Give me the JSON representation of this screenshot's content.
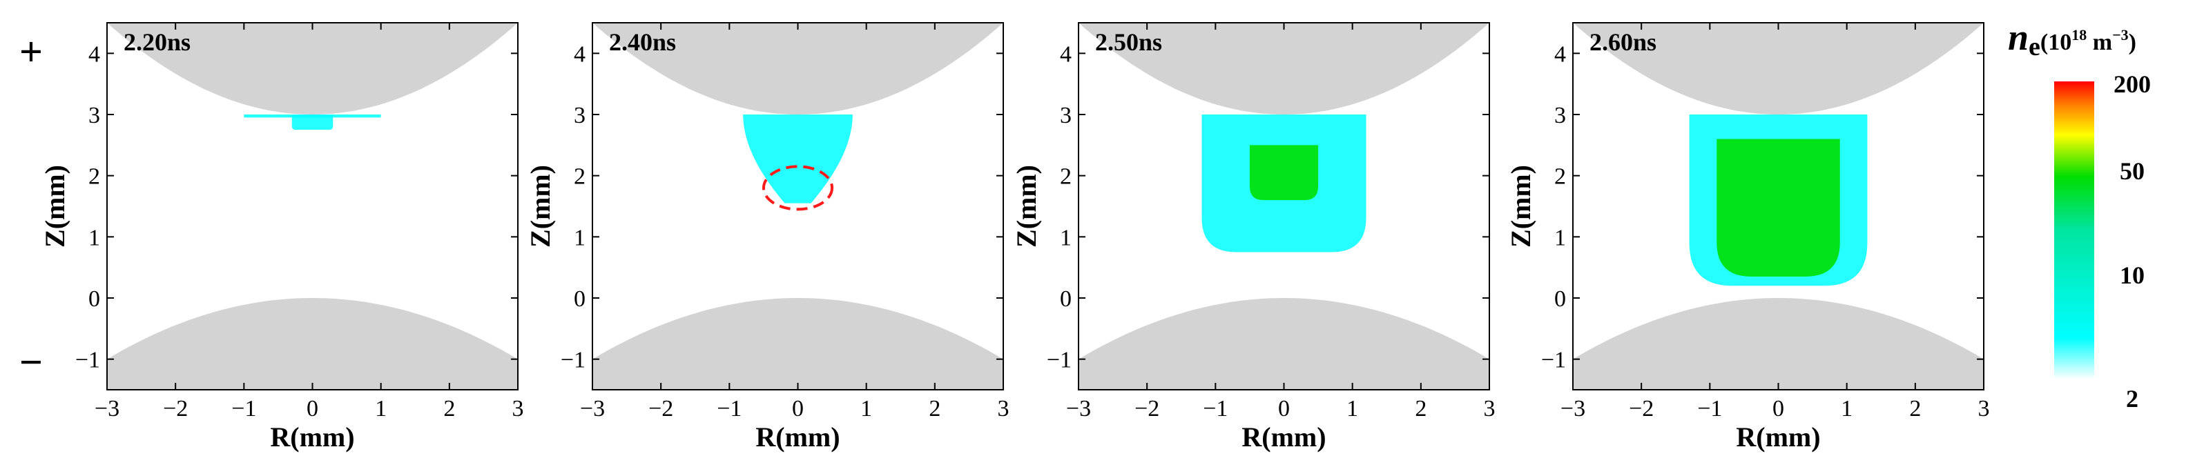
{
  "chart_data": [
    {
      "type": "heatmap",
      "title": "2.20ns",
      "xlabel": "R(mm)",
      "ylabel": "Z(mm)",
      "xlim": [
        -3,
        3
      ],
      "ylim": [
        -1.5,
        4.5
      ],
      "xticks": [
        -3,
        -2,
        -1,
        0,
        1,
        2,
        3
      ],
      "yticks": [
        -1,
        0,
        1,
        2,
        3,
        4
      ],
      "plasma_regions": [
        {
          "name": "thin sheath under upper electrode",
          "r": [
            -1.0,
            1.0
          ],
          "z": [
            2.95,
            3.0
          ],
          "ne": 8
        },
        {
          "name": "small blob below upper electrode",
          "r": [
            -0.3,
            0.3
          ],
          "z": [
            2.75,
            3.0
          ],
          "ne": 5
        }
      ]
    },
    {
      "type": "heatmap",
      "title": "2.40ns",
      "xlabel": "R(mm)",
      "ylabel": "Z(mm)",
      "xlim": [
        -3,
        3
      ],
      "ylim": [
        -1.5,
        4.5
      ],
      "xticks": [
        -3,
        -2,
        -1,
        0,
        1,
        2,
        3
      ],
      "yticks": [
        -1,
        0,
        1,
        2,
        3,
        4
      ],
      "plasma_regions": [
        {
          "name": "conical plasma column",
          "r": [
            -0.8,
            0.8
          ],
          "z": [
            1.55,
            3.0
          ],
          "ne": 7
        }
      ],
      "annotation": {
        "type": "dashed ellipse",
        "color": "#ff1a1a",
        "center_r": 0.0,
        "center_z": 1.8,
        "width_r": 1.0,
        "height_z": 0.7
      }
    },
    {
      "type": "heatmap",
      "title": "2.50ns",
      "xlabel": "R(mm)",
      "ylabel": "Z(mm)",
      "xlim": [
        -3,
        3
      ],
      "ylim": [
        -1.5,
        4.5
      ],
      "xticks": [
        -3,
        -2,
        -1,
        0,
        1,
        2,
        3
      ],
      "yticks": [
        -1,
        0,
        1,
        2,
        3,
        4
      ],
      "plasma_regions": [
        {
          "name": "plasma column",
          "r": [
            -1.2,
            1.2
          ],
          "z": [
            0.75,
            3.0
          ],
          "ne": 8
        },
        {
          "name": "dense core",
          "r": [
            -0.5,
            0.5
          ],
          "z": [
            1.6,
            2.5
          ],
          "ne": 40
        }
      ]
    },
    {
      "type": "heatmap",
      "title": "2.60ns",
      "xlabel": "R(mm)",
      "ylabel": "Z(mm)",
      "xlim": [
        -3,
        3
      ],
      "ylim": [
        -1.5,
        4.5
      ],
      "xticks": [
        -3,
        -2,
        -1,
        0,
        1,
        2,
        3
      ],
      "yticks": [
        -1,
        0,
        1,
        2,
        3,
        4
      ],
      "plasma_regions": [
        {
          "name": "plasma column",
          "r": [
            -1.3,
            1.3
          ],
          "z": [
            0.2,
            3.0
          ],
          "ne": 8
        },
        {
          "name": "dense core",
          "r": [
            -0.9,
            0.9
          ],
          "z": [
            0.35,
            2.6
          ],
          "ne": 50
        }
      ]
    }
  ],
  "electrodes": {
    "upper": {
      "polarity": "+",
      "tip_z_mm": 3.0,
      "z_at_r3_mm": 4.5
    },
    "lower": {
      "polarity": "−",
      "tip_z_mm": 0.0,
      "z_at_r3_mm": -1.0
    }
  },
  "colorbar": {
    "label": "n",
    "label_subscript": "e",
    "unit_prefix": "(10",
    "unit_exp": "18",
    "unit_mid": " m",
    "unit_exp2": "−3",
    "unit_suffix": ")",
    "tick_labels": [
      "200",
      "50",
      "10",
      "2"
    ],
    "tick_values": [
      200,
      50,
      10,
      2
    ],
    "range": [
      2,
      200
    ],
    "scale": "log",
    "colors": [
      "#ffffff",
      "#00ffff",
      "#00e000",
      "#ffff00",
      "#ff8000",
      "#ff0000"
    ]
  },
  "colors": {
    "electrode": "#d3d3d3",
    "plasma_low": "#00ffff",
    "plasma_high": "#00e000",
    "annotation": "#ff1a1a"
  }
}
